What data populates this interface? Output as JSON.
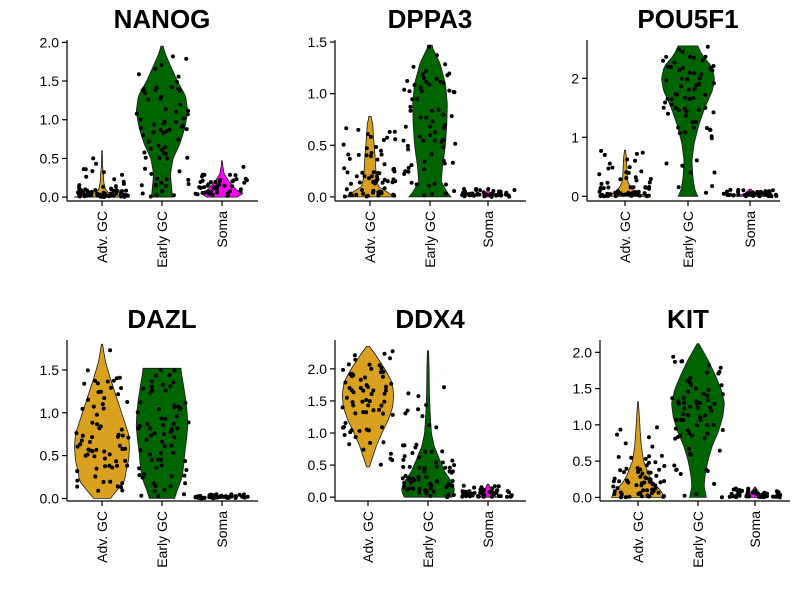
{
  "colors": {
    "Adv. GC": "#DAA020",
    "Early GC": "#006400",
    "Soma": "#FF00FF"
  },
  "chart_data": [
    {
      "type": "violin",
      "title": "NANOG",
      "categories": [
        "Adv. GC",
        "Early GC",
        "Soma"
      ],
      "ylim": [
        -0.05,
        2.03
      ],
      "yticks": [
        0.0,
        0.5,
        1.0,
        1.5,
        2.0
      ],
      "ytick_labels": [
        "0.0",
        "0.5",
        "1.0",
        "1.5",
        "2.0"
      ],
      "series": [
        {
          "category": "Adv. GC",
          "max": 0.6,
          "density": [
            [
              0,
              1.0
            ],
            [
              0.05,
              0.25
            ],
            [
              0.1,
              0.12
            ],
            [
              0.2,
              0.06
            ],
            [
              0.3,
              0.05
            ],
            [
              0.4,
              0.02
            ],
            [
              0.5,
              0.015
            ],
            [
              0.6,
              0.01
            ]
          ]
        },
        {
          "category": "Early GC",
          "max": 1.95,
          "density": [
            [
              0,
              0.38
            ],
            [
              0.1,
              0.35
            ],
            [
              0.3,
              0.3
            ],
            [
              0.5,
              0.4
            ],
            [
              0.7,
              0.65
            ],
            [
              0.9,
              0.82
            ],
            [
              1.1,
              0.92
            ],
            [
              1.3,
              0.85
            ],
            [
              1.5,
              0.55
            ],
            [
              1.7,
              0.3
            ],
            [
              1.85,
              0.12
            ],
            [
              1.95,
              0.04
            ]
          ]
        },
        {
          "category": "Soma",
          "max": 0.47,
          "density": [
            [
              0,
              0.55
            ],
            [
              0.05,
              0.75
            ],
            [
              0.1,
              0.5
            ],
            [
              0.2,
              0.25
            ],
            [
              0.3,
              0.08
            ],
            [
              0.4,
              0.03
            ],
            [
              0.47,
              0.01
            ]
          ]
        }
      ]
    },
    {
      "type": "violin",
      "title": "DPPA3",
      "categories": [
        "Adv. GC",
        "Early GC",
        "Soma"
      ],
      "ylim": [
        -0.04,
        1.52
      ],
      "yticks": [
        0.0,
        0.5,
        1.0,
        1.5
      ],
      "ytick_labels": [
        "0.0",
        "0.5",
        "1.0",
        "1.5"
      ],
      "series": [
        {
          "category": "Adv. GC",
          "max": 0.78,
          "density": [
            [
              0,
              0.85
            ],
            [
              0.05,
              0.6
            ],
            [
              0.1,
              0.3
            ],
            [
              0.2,
              0.22
            ],
            [
              0.3,
              0.2
            ],
            [
              0.4,
              0.18
            ],
            [
              0.5,
              0.15
            ],
            [
              0.6,
              0.12
            ],
            [
              0.7,
              0.1
            ],
            [
              0.78,
              0.04
            ]
          ]
        },
        {
          "category": "Early GC",
          "max": 1.47,
          "density": [
            [
              0,
              0.75
            ],
            [
              0.05,
              0.6
            ],
            [
              0.15,
              0.4
            ],
            [
              0.3,
              0.45
            ],
            [
              0.5,
              0.55
            ],
            [
              0.7,
              0.6
            ],
            [
              0.9,
              0.62
            ],
            [
              1.1,
              0.55
            ],
            [
              1.3,
              0.35
            ],
            [
              1.45,
              0.08
            ]
          ]
        },
        {
          "category": "Soma",
          "max": 0.08,
          "density": [
            [
              0,
              0.12
            ],
            [
              0.03,
              0.06
            ],
            [
              0.08,
              0.02
            ]
          ]
        }
      ]
    },
    {
      "type": "violin",
      "title": "POU5F1",
      "categories": [
        "Adv. GC",
        "Early GC",
        "Soma"
      ],
      "ylim": [
        -0.08,
        2.65
      ],
      "yticks": [
        0,
        1,
        2
      ],
      "ytick_labels": [
        "0",
        "1",
        "2"
      ],
      "series": [
        {
          "category": "Adv. GC",
          "max": 0.78,
          "density": [
            [
              0,
              0.9
            ],
            [
              0.05,
              0.4
            ],
            [
              0.15,
              0.2
            ],
            [
              0.25,
              0.1
            ],
            [
              0.35,
              0.08
            ],
            [
              0.45,
              0.07
            ],
            [
              0.55,
              0.06
            ],
            [
              0.65,
              0.05
            ],
            [
              0.78,
              0.02
            ]
          ]
        },
        {
          "category": "Early GC",
          "max": 2.55,
          "density": [
            [
              0,
              0.35
            ],
            [
              0.1,
              0.25
            ],
            [
              0.3,
              0.18
            ],
            [
              0.6,
              0.14
            ],
            [
              0.9,
              0.22
            ],
            [
              1.2,
              0.38
            ],
            [
              1.5,
              0.6
            ],
            [
              1.8,
              0.88
            ],
            [
              2.0,
              0.95
            ],
            [
              2.2,
              0.85
            ],
            [
              2.4,
              0.5
            ],
            [
              2.55,
              0.35
            ]
          ]
        },
        {
          "category": "Soma",
          "max": 0.12,
          "density": [
            [
              0,
              0.5
            ],
            [
              0.05,
              0.18
            ],
            [
              0.12,
              0.03
            ]
          ]
        }
      ]
    },
    {
      "type": "violin",
      "title": "DAZL",
      "categories": [
        "Adv. GC",
        "Early GC",
        "Soma"
      ],
      "ylim": [
        -0.03,
        1.85
      ],
      "yticks": [
        0.0,
        0.5,
        1.0,
        1.5
      ],
      "ytick_labels": [
        "0.0",
        "0.5",
        "1.0",
        "1.5"
      ],
      "series": [
        {
          "category": "Adv. GC",
          "max": 1.8,
          "density": [
            [
              0,
              0.3
            ],
            [
              0.1,
              0.55
            ],
            [
              0.2,
              0.8
            ],
            [
              0.3,
              0.85
            ],
            [
              0.45,
              0.95
            ],
            [
              0.6,
              0.98
            ],
            [
              0.75,
              0.95
            ],
            [
              0.9,
              0.8
            ],
            [
              1.05,
              0.65
            ],
            [
              1.2,
              0.5
            ],
            [
              1.4,
              0.3
            ],
            [
              1.6,
              0.12
            ],
            [
              1.8,
              0.02
            ]
          ]
        },
        {
          "category": "Early GC",
          "max": 1.52,
          "density": [
            [
              0,
              0.45
            ],
            [
              0.1,
              0.55
            ],
            [
              0.25,
              0.72
            ],
            [
              0.4,
              0.78
            ],
            [
              0.55,
              0.82
            ],
            [
              0.7,
              0.88
            ],
            [
              0.85,
              0.92
            ],
            [
              1.0,
              0.9
            ],
            [
              1.15,
              0.85
            ],
            [
              1.3,
              0.78
            ],
            [
              1.45,
              0.7
            ],
            [
              1.52,
              0.68
            ]
          ]
        },
        {
          "category": "Soma",
          "max": 0.05,
          "density": [
            [
              0,
              0.12
            ],
            [
              0.03,
              0.05
            ],
            [
              0.05,
              0.02
            ]
          ]
        }
      ]
    },
    {
      "type": "violin",
      "title": "DDX4",
      "categories": [
        "Adv. GC",
        "Early GC",
        "Soma"
      ],
      "ylim": [
        -0.06,
        2.45
      ],
      "yticks": [
        0.0,
        0.5,
        1.0,
        1.5,
        2.0
      ],
      "ytick_labels": [
        "0.0",
        "0.5",
        "1.0",
        "1.5",
        "2.0"
      ],
      "series": [
        {
          "category": "Adv. GC",
          "min": 0.47,
          "max": 2.35,
          "density": [
            [
              0.47,
              0.05
            ],
            [
              0.6,
              0.15
            ],
            [
              0.8,
              0.3
            ],
            [
              1.0,
              0.5
            ],
            [
              1.2,
              0.72
            ],
            [
              1.4,
              0.88
            ],
            [
              1.6,
              0.92
            ],
            [
              1.8,
              0.85
            ],
            [
              2.0,
              0.6
            ],
            [
              2.2,
              0.3
            ],
            [
              2.35,
              0.05
            ]
          ]
        },
        {
          "category": "Early GC",
          "max": 2.28,
          "density": [
            [
              0,
              0.85
            ],
            [
              0.1,
              0.95
            ],
            [
              0.2,
              0.9
            ],
            [
              0.4,
              0.6
            ],
            [
              0.6,
              0.4
            ],
            [
              0.8,
              0.22
            ],
            [
              1.0,
              0.12
            ],
            [
              1.3,
              0.08
            ],
            [
              1.6,
              0.05
            ],
            [
              2.0,
              0.04
            ],
            [
              2.28,
              0.02
            ]
          ]
        },
        {
          "category": "Soma",
          "max": 0.2,
          "density": [
            [
              0,
              0.3
            ],
            [
              0.05,
              0.2
            ],
            [
              0.1,
              0.12
            ],
            [
              0.2,
              0.03
            ]
          ]
        }
      ]
    },
    {
      "type": "violin",
      "title": "KIT",
      "categories": [
        "Adv. GC",
        "Early GC",
        "Soma"
      ],
      "ylim": [
        -0.05,
        2.17
      ],
      "yticks": [
        0.0,
        0.5,
        1.0,
        1.5,
        2.0
      ],
      "ytick_labels": [
        "0.0",
        "0.5",
        "1.0",
        "1.5",
        "2.0"
      ],
      "series": [
        {
          "category": "Adv. GC",
          "max": 1.32,
          "density": [
            [
              0,
              0.95
            ],
            [
              0.1,
              0.8
            ],
            [
              0.2,
              0.55
            ],
            [
              0.3,
              0.4
            ],
            [
              0.4,
              0.3
            ],
            [
              0.5,
              0.2
            ],
            [
              0.7,
              0.12
            ],
            [
              0.9,
              0.08
            ],
            [
              1.1,
              0.05
            ],
            [
              1.32,
              0.01
            ]
          ]
        },
        {
          "category": "Early GC",
          "max": 2.12,
          "density": [
            [
              0,
              0.3
            ],
            [
              0.15,
              0.22
            ],
            [
              0.3,
              0.25
            ],
            [
              0.5,
              0.35
            ],
            [
              0.7,
              0.5
            ],
            [
              0.9,
              0.72
            ],
            [
              1.1,
              0.88
            ],
            [
              1.3,
              0.95
            ],
            [
              1.5,
              0.82
            ],
            [
              1.7,
              0.6
            ],
            [
              1.9,
              0.35
            ],
            [
              2.12,
              0.03
            ]
          ]
        },
        {
          "category": "Soma",
          "max": 0.14,
          "density": [
            [
              0,
              0.35
            ],
            [
              0.05,
              0.2
            ],
            [
              0.1,
              0.08
            ],
            [
              0.14,
              0.02
            ]
          ]
        }
      ]
    }
  ]
}
